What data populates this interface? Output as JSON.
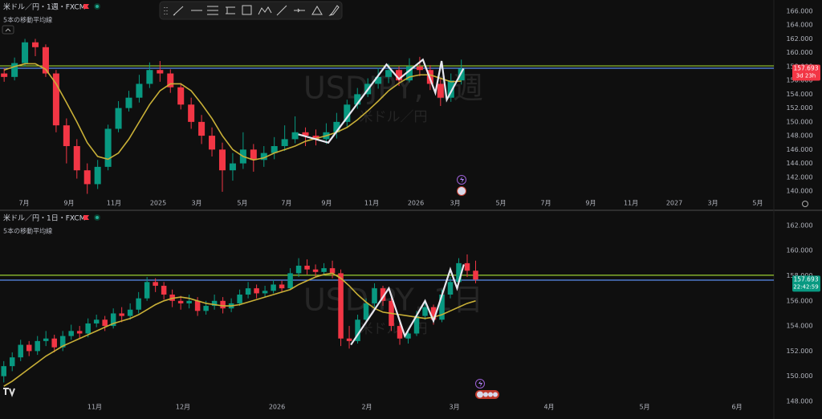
{
  "chart_data": [
    {
      "type": "candlestick",
      "title": "米ドル／円・1週・FXCM",
      "indicator": "5本の移動平均線",
      "watermark": "USDJPY, 1週",
      "watermark_sub": "米ドル／円",
      "up_color": "#089981",
      "down_color": "#f23645",
      "ma_color": "#c9b037",
      "drawing_color": "#e8e8f0",
      "open": [
        157.0,
        156.5,
        158.5,
        161.5,
        160.8,
        157.0,
        149.5,
        146.5,
        143.0,
        141.0,
        143.5,
        149.0,
        152.0,
        153.5,
        155.5,
        157.5,
        157.0,
        155.0,
        152.5,
        150.0,
        148.0,
        146.0,
        143.0,
        144.0,
        146.0,
        144.5,
        145.5,
        146.5,
        147.5,
        148.5,
        148.0,
        147.5,
        148.5,
        150.0,
        152.5,
        154.0,
        155.5,
        156.5,
        157.5,
        156.0,
        158.0,
        157.5,
        155.5,
        153.5,
        156.0
      ],
      "high": [
        157.8,
        159.3,
        162.0,
        162.0,
        161.2,
        157.5,
        150.5,
        147.5,
        144.0,
        144.5,
        149.6,
        153.0,
        154.5,
        156.8,
        158.6,
        158.8,
        157.6,
        155.6,
        153.5,
        151.0,
        149.2,
        147.0,
        145.5,
        148.5,
        146.8,
        146.5,
        147.8,
        149.5,
        150.8,
        149.2,
        148.9,
        149.8,
        151.3,
        153.2,
        154.9,
        156.3,
        157.8,
        158.4,
        158.0,
        159.2,
        159.4,
        158.2,
        156.4,
        157.0,
        159.0
      ],
      "low": [
        155.8,
        156.0,
        158.0,
        159.5,
        156.5,
        148.5,
        144.0,
        141.8,
        139.6,
        140.3,
        143.0,
        148.5,
        151.5,
        152.8,
        154.9,
        155.8,
        154.2,
        151.8,
        149.0,
        146.8,
        145.0,
        139.9,
        141.5,
        143.2,
        142.8,
        143.5,
        144.6,
        145.8,
        146.9,
        146.5,
        146.6,
        146.8,
        147.6,
        149.3,
        151.9,
        153.6,
        154.8,
        155.6,
        155.2,
        155.7,
        156.6,
        154.6,
        152.3,
        152.9,
        155.4
      ],
      "close": [
        156.5,
        158.5,
        161.5,
        160.8,
        157.0,
        149.5,
        146.5,
        143.0,
        141.0,
        143.5,
        149.0,
        152.0,
        153.5,
        155.5,
        157.5,
        157.0,
        155.0,
        152.5,
        150.0,
        148.0,
        146.0,
        143.0,
        144.0,
        146.0,
        144.5,
        145.5,
        146.5,
        147.5,
        148.5,
        148.0,
        147.5,
        148.5,
        150.0,
        152.5,
        154.0,
        155.5,
        156.5,
        157.5,
        156.0,
        158.0,
        157.5,
        155.5,
        153.5,
        156.0,
        157.7
      ],
      "ma_values": [
        157.5,
        158,
        158.4,
        158.4,
        157.6,
        155.5,
        152.8,
        150.0,
        147.0,
        145.0,
        144.6,
        145.5,
        147.5,
        150.0,
        152.5,
        154.5,
        155.5,
        155.5,
        154.5,
        152.6,
        150.5,
        148.0,
        146.0,
        145.0,
        144.5,
        144.8,
        145.5,
        146.0,
        146.5,
        147.2,
        147.6,
        148.0,
        148.5,
        149.2,
        150.3,
        151.6,
        153.0,
        154.5,
        155.6,
        156.5,
        156.8,
        156.8,
        156.3,
        155.8,
        155.9
      ],
      "drawing": {
        "x": [
          28.3,
          31.2,
          36.8,
          38.0,
          40.3,
          41.5,
          42.1,
          42.6,
          44.2
        ],
        "values": [
          148.2,
          147.0,
          158.3,
          156.2,
          159.0,
          154.2,
          158.8,
          153.2,
          157.7
        ]
      },
      "hlines": [
        {
          "value": 158.1,
          "color": "#9acd32"
        },
        {
          "value": 157.76,
          "color": "#5b8def"
        }
      ],
      "last_price": 157.693,
      "last_color": "#f23645",
      "countdown": "3d 23h",
      "xlim": [
        -0.4,
        74.0
      ],
      "ylim": [
        138.96,
        167.62
      ],
      "xticks": [
        {
          "value": 1.92,
          "label": "7月"
        },
        {
          "value": 6.24,
          "label": "9月"
        },
        {
          "value": 10.57,
          "label": "11月"
        },
        {
          "value": 14.82,
          "label": "2025"
        },
        {
          "value": 18.53,
          "label": "3月"
        },
        {
          "value": 22.93,
          "label": "5月"
        },
        {
          "value": 27.18,
          "label": "7月"
        },
        {
          "value": 31.04,
          "label": "9月"
        },
        {
          "value": 35.37,
          "label": "11月"
        },
        {
          "value": 39.62,
          "label": "2026"
        },
        {
          "value": 43.41,
          "label": "3月"
        },
        {
          "value": 47.81,
          "label": "5月"
        },
        {
          "value": 52.14,
          "label": "7月"
        },
        {
          "value": 56.46,
          "label": "9月"
        },
        {
          "value": 60.33,
          "label": "11月"
        },
        {
          "value": 64.5,
          "label": "2027"
        },
        {
          "value": 68.21,
          "label": "3月"
        },
        {
          "value": 72.53,
          "label": "5月"
        }
      ],
      "yticks": [
        {
          "value": 140,
          "label": "140.000"
        },
        {
          "value": 142,
          "label": "142.000"
        },
        {
          "value": 144,
          "label": "144.000"
        },
        {
          "value": 146,
          "label": "146.000"
        },
        {
          "value": 148,
          "label": "148.000"
        },
        {
          "value": 150,
          "label": "150.000"
        },
        {
          "value": 152,
          "label": "152.000"
        },
        {
          "value": 154,
          "label": "154.000"
        },
        {
          "value": 156,
          "label": "156.000"
        },
        {
          "value": 158,
          "label": "158.000"
        },
        {
          "value": 160,
          "label": "160.000"
        },
        {
          "value": 162,
          "label": "162.000"
        },
        {
          "value": 164,
          "label": "164.000"
        },
        {
          "value": 166,
          "label": "166.000"
        }
      ]
    },
    {
      "type": "candlestick",
      "title": "米ドル／円・1日・FXCM",
      "indicator": "5本の移動平均線",
      "watermark": "USDJPY, 1日",
      "watermark_sub": "米ドル／円",
      "up_color": "#089981",
      "down_color": "#f23645",
      "ma_color": "#c9b037",
      "drawing_color": "#e8e8f0",
      "open": [
        150.0,
        150.8,
        151.5,
        152.5,
        152.0,
        152.8,
        153.0,
        152.3,
        153.2,
        153.6,
        153.4,
        154.2,
        154.5,
        154.0,
        155.0,
        154.8,
        155.3,
        156.2,
        157.5,
        157.2,
        156.5,
        156.0,
        155.8,
        156.0,
        155.2,
        155.6,
        156.0,
        155.4,
        155.8,
        156.5,
        157.0,
        156.6,
        156.8,
        157.3,
        157.0,
        158.2,
        158.8,
        158.5,
        158.3,
        158.6,
        158.2,
        153.0,
        152.8,
        154.5,
        155.8,
        157.0,
        156.0,
        154.0,
        153.0,
        153.4,
        154.8,
        155.5,
        154.5,
        156.5,
        157.5,
        159.0,
        158.4
      ],
      "high": [
        151.2,
        151.9,
        152.9,
        152.8,
        153.2,
        153.6,
        153.3,
        153.6,
        154.1,
        154.0,
        154.6,
        154.9,
        154.8,
        155.4,
        155.5,
        155.8,
        156.7,
        157.9,
        157.8,
        157.5,
        156.9,
        156.4,
        156.5,
        156.3,
        156.0,
        156.5,
        156.3,
        156.2,
        156.9,
        157.5,
        157.3,
        157.2,
        157.7,
        157.6,
        158.6,
        159.4,
        159.3,
        158.9,
        159.0,
        159.2,
        158.5,
        154.0,
        154.9,
        156.2,
        157.4,
        157.2,
        156.3,
        154.3,
        153.8,
        155.2,
        155.9,
        155.7,
        156.9,
        157.9,
        159.4,
        159.7,
        159.2
      ],
      "low": [
        149.5,
        150.4,
        151.2,
        151.6,
        151.7,
        152.4,
        151.9,
        152.0,
        152.9,
        153.0,
        153.1,
        153.9,
        153.6,
        153.8,
        154.3,
        154.5,
        155.0,
        156.0,
        156.7,
        156.1,
        155.5,
        155.3,
        155.4,
        154.8,
        154.9,
        155.3,
        155.0,
        155.1,
        155.6,
        156.2,
        156.2,
        156.3,
        156.6,
        156.7,
        156.9,
        157.9,
        158.1,
        157.9,
        158.0,
        157.8,
        152.4,
        152.2,
        152.6,
        154.2,
        155.5,
        155.6,
        153.6,
        152.5,
        152.6,
        153.2,
        154.5,
        154.1,
        154.3,
        156.2,
        157.3,
        157.9,
        157.4
      ],
      "close": [
        150.8,
        151.5,
        152.5,
        152.0,
        152.8,
        153.0,
        152.3,
        153.2,
        153.6,
        153.4,
        154.2,
        154.5,
        154.0,
        155.0,
        154.8,
        155.3,
        156.2,
        157.5,
        157.2,
        156.5,
        156.0,
        155.8,
        156.0,
        155.2,
        155.6,
        156.0,
        155.4,
        155.8,
        156.5,
        157.0,
        156.6,
        156.8,
        157.3,
        157.0,
        158.2,
        158.8,
        158.5,
        158.3,
        158.6,
        158.2,
        153.0,
        152.8,
        154.5,
        155.8,
        157.0,
        156.0,
        154.0,
        153.0,
        153.4,
        154.8,
        155.5,
        154.5,
        156.5,
        157.5,
        159.0,
        158.4,
        157.7
      ],
      "ma_values": [
        149.2,
        149.6,
        150.1,
        150.6,
        151.1,
        151.6,
        152.0,
        152.4,
        152.7,
        153.0,
        153.3,
        153.6,
        153.9,
        154.2,
        154.4,
        154.6,
        154.9,
        155.3,
        155.7,
        156.0,
        156.2,
        156.3,
        156.2,
        156.0,
        155.8,
        155.7,
        155.6,
        155.6,
        155.7,
        155.9,
        156.1,
        156.3,
        156.5,
        156.7,
        156.9,
        157.3,
        157.6,
        157.9,
        158.1,
        158.2,
        157.8,
        157.2,
        156.5,
        155.9,
        155.4,
        155.1,
        155.0,
        154.9,
        154.8,
        154.7,
        154.6,
        154.7,
        154.9,
        155.2,
        155.5,
        155.8,
        156.0
      ],
      "drawing": {
        "x": [
          41.2,
          45.7,
          47.6,
          50.0,
          51.0,
          53.0,
          53.8,
          54.6
        ],
        "values": [
          152.5,
          157.0,
          153.2,
          156.0,
          154.4,
          158.5,
          157.0,
          158.9
        ]
      },
      "hlines": [
        {
          "value": 158.04,
          "color": "#9acd32"
        },
        {
          "value": 157.65,
          "color": "#5b8def"
        }
      ],
      "last_price": 157.693,
      "last_color": "#089981",
      "countdown": "22:42:59",
      "xlim": [
        -0.45,
        91.3
      ],
      "ylim": [
        147.23,
        163.02
      ],
      "xticks": [
        {
          "value": 10.79,
          "label": "11月"
        },
        {
          "value": 21.27,
          "label": "12月"
        },
        {
          "value": 32.42,
          "label": "2026"
        },
        {
          "value": 43.09,
          "label": "2月"
        },
        {
          "value": 53.48,
          "label": "3月"
        },
        {
          "value": 64.72,
          "label": "4月"
        },
        {
          "value": 76.06,
          "label": "5月"
        },
        {
          "value": 87.02,
          "label": "6月"
        }
      ],
      "yticks": [
        {
          "value": 148,
          "label": "148.000"
        },
        {
          "value": 150,
          "label": "150.000"
        },
        {
          "value": 152,
          "label": "152.000"
        },
        {
          "value": 154,
          "label": "154.000"
        },
        {
          "value": 156,
          "label": "156.000"
        },
        {
          "value": 158,
          "label": "158.000"
        },
        {
          "value": 160,
          "label": "160.000"
        },
        {
          "value": 162,
          "label": "162.000"
        }
      ]
    }
  ]
}
